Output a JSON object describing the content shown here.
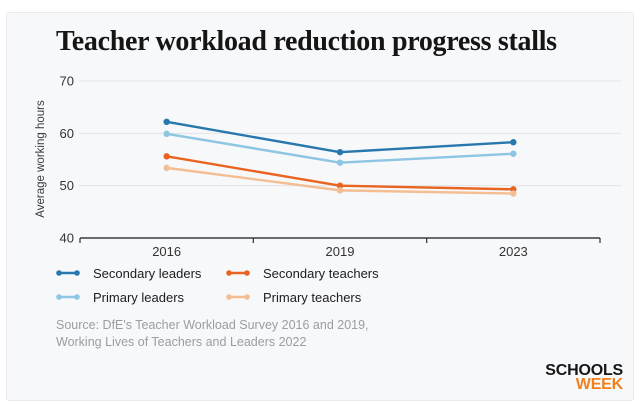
{
  "card": {
    "title": "Teacher workload reduction progress stalls",
    "source_line1": "Source: DfE's Teacher Workload Survey 2016 and 2019,",
    "source_line2": "Working Lives of Teachers and Leaders 2022",
    "logo": {
      "top": "SCHOOLS",
      "bottom": "WEEK",
      "top_color": "#161616",
      "bottom_color": "#f1801f"
    }
  },
  "chart_data": {
    "type": "line",
    "title": "Teacher workload reduction progress stalls",
    "xlabel": "",
    "ylabel": "Average working hours",
    "x_categories": [
      "2016",
      "2019",
      "2023"
    ],
    "y_ticks": [
      40,
      50,
      60,
      70
    ],
    "ylim": [
      40,
      70
    ],
    "grid": "horizontal",
    "legend_position": "bottom-left",
    "series": [
      {
        "name": "Secondary leaders",
        "color": "#2878ae",
        "values": [
          62.2,
          56.4,
          58.3
        ]
      },
      {
        "name": "Primary leaders",
        "color": "#8cc6e3",
        "values": [
          59.9,
          54.4,
          56.1
        ]
      },
      {
        "name": "Secondary teachers",
        "color": "#e96420",
        "values": [
          55.6,
          50.0,
          49.3
        ]
      },
      {
        "name": "Primary teachers",
        "color": "#f4bd92",
        "values": [
          53.4,
          49.1,
          48.5
        ]
      }
    ],
    "colors": {
      "card_background": "#f7f8fa",
      "gridline": "#e2e4e8",
      "axis": "#3c3c3c",
      "tick_text": "#333333"
    }
  }
}
